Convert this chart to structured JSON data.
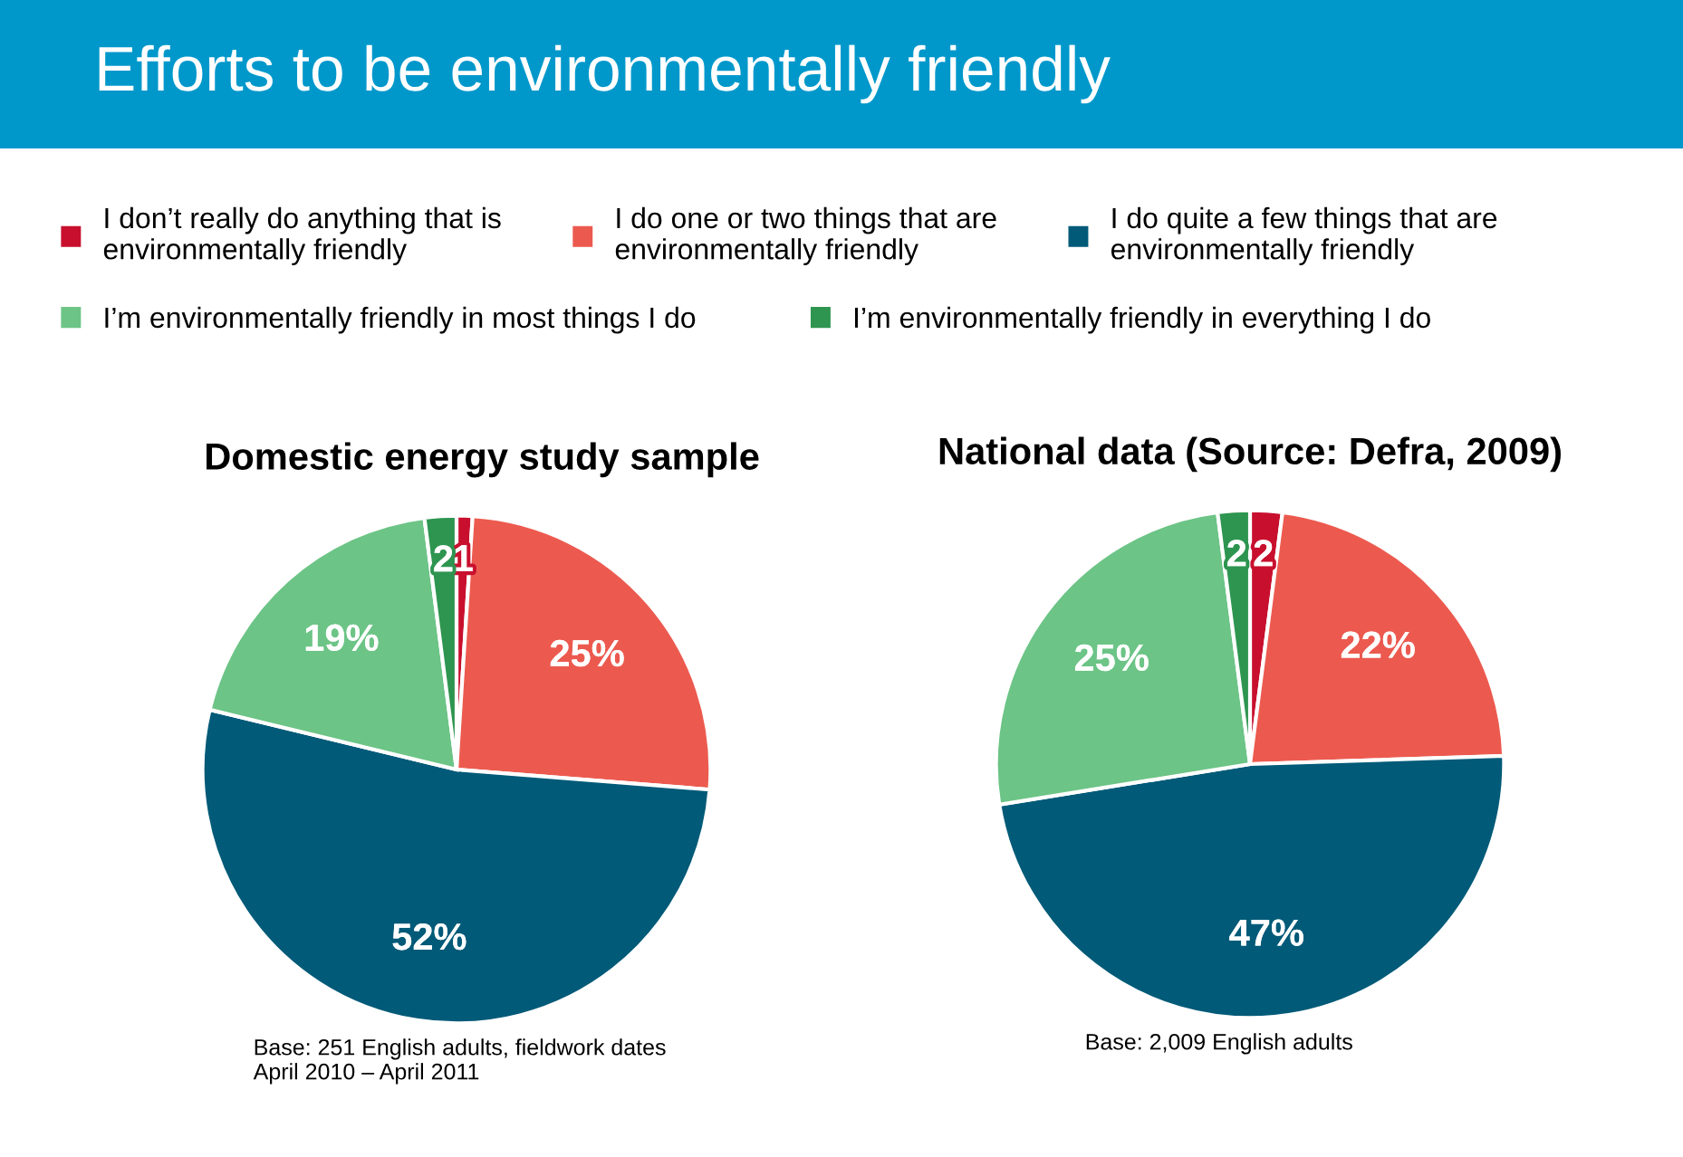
{
  "chart_data": [
    {
      "type": "other",
      "title": "Efforts to be environmentally friendly"
    },
    {
      "type": "pie",
      "title": "Domestic energy study sample",
      "categories": [
        "I don’t really do anything that is environmentally friendly",
        "I do one or two things that are environmentally friendly",
        "I do quite a few things that are environmentally friendly",
        "I’m environmentally friendly in most things I do",
        "I’m environmentally friendly in everything I do"
      ],
      "values": [
        1,
        25,
        52,
        19,
        2
      ],
      "value_labels": [
        "1",
        "25%",
        "52%",
        "19%",
        "2"
      ],
      "colors": [
        "#c8102e",
        "#ec5a4f",
        "#005a78",
        "#6cc486",
        "#2e9550"
      ],
      "legend": "top",
      "annotations": [
        "Base: 251 English adults, fieldwork dates April 2010 – April 2011"
      ]
    },
    {
      "type": "pie",
      "title": "National data (Source: Defra, 2009)",
      "categories": [
        null,
        null,
        null,
        null,
        null
      ],
      "values": [
        2,
        22,
        47,
        25,
        2
      ],
      "value_labels": [
        "2",
        "22%",
        "47%",
        "25%",
        "2"
      ],
      "colors": [
        "#c8102e",
        "#ec5a4f",
        "#005a78",
        "#6cc486",
        "#2e9550"
      ],
      "annotations": [
        "Base: 2,009 English adults"
      ]
    }
  ]
}
